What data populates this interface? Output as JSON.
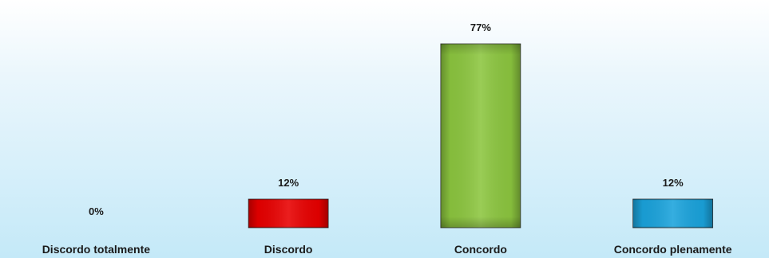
{
  "chart_data": {
    "type": "bar",
    "categories": [
      "Discordo totalmente",
      "Discordo",
      "Concordo",
      "Concordo plenamente"
    ],
    "values": [
      0,
      12,
      77,
      12
    ],
    "value_labels": [
      "0%",
      "12%",
      "77%",
      "12%"
    ],
    "colors": [
      "#1a8fd0",
      "#e80000",
      "#8cc63f",
      "#1aa3dc"
    ],
    "ylim": [
      0,
      80
    ],
    "grid": false,
    "legend": "none",
    "title": "",
    "xlabel": "",
    "ylabel": ""
  }
}
